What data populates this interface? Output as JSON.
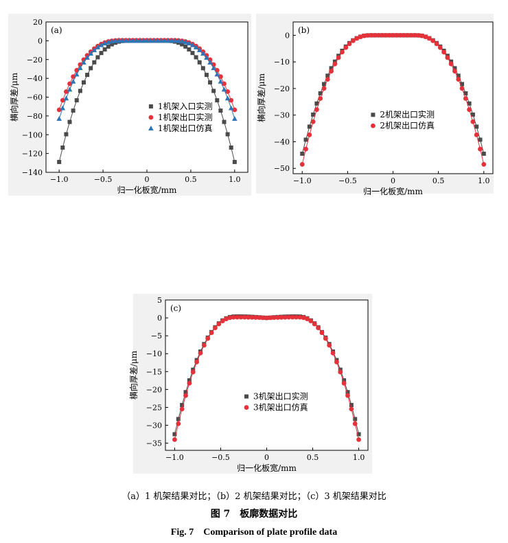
{
  "chart_data": [
    {
      "type": "scatter",
      "panel_label": "(a)",
      "xlabel": "归一化板宽/mm",
      "ylabel": "横向厚差/μm",
      "xlim": [
        -1.15,
        1.15
      ],
      "ylim": [
        -140,
        20
      ],
      "xticks": [
        -1.0,
        -0.5,
        0,
        0.5,
        1.0
      ],
      "xtick_labels": [
        "−1.0",
        "−0.5",
        "0",
        "0.5",
        "1.0"
      ],
      "yticks": [
        20,
        0,
        -20,
        -40,
        -60,
        -80,
        -100,
        -120,
        -140
      ],
      "ytick_labels": [
        "20",
        "0",
        "−20",
        "−40",
        "−60",
        "−80",
        "−100",
        "−120",
        "−140"
      ],
      "grid": false,
      "legend_position": "center-right",
      "n_points": 51,
      "series": [
        {
          "name": "1机架入口实测",
          "marker": "square",
          "color": "#4a4a4a",
          "edge_value": -129,
          "flat_half_width": 0.22,
          "exponent": 2.4,
          "center_value": 0
        },
        {
          "name": "1机架出口实测",
          "marker": "circle",
          "color": "#e5323a",
          "edge_value": -74,
          "flat_half_width": 0.3,
          "exponent": 2.5,
          "center_value": 0.5
        },
        {
          "name": "1机架出口仿真",
          "marker": "triangle",
          "color": "#2f75b5",
          "edge_value": -83,
          "flat_half_width": 0.3,
          "exponent": 2.5,
          "center_value": 0
        }
      ]
    },
    {
      "type": "scatter",
      "panel_label": "(b)",
      "xlabel": "归一化板宽/mm",
      "ylabel": "横向厚差/μm",
      "xlim": [
        -1.1,
        1.1
      ],
      "ylim": [
        -52,
        5
      ],
      "xticks": [
        -1.0,
        -0.5,
        0,
        0.5,
        1.0
      ],
      "xtick_labels": [
        "−1.0",
        "−0.5",
        "0",
        "0.5",
        "1.0"
      ],
      "yticks": [
        0,
        -10,
        -20,
        -30,
        -40,
        -50
      ],
      "ytick_labels": [
        "0",
        "−10",
        "−20",
        "−30",
        "−40",
        "−50"
      ],
      "grid": false,
      "legend_position": "center-right",
      "n_points": 51,
      "series": [
        {
          "name": "2机架出口实测",
          "marker": "square",
          "color": "#4a4a4a",
          "edge_value": -44.5,
          "flat_half_width": 0.25,
          "exponent": 2.3,
          "center_value": 0
        },
        {
          "name": "2机架出口仿真",
          "marker": "circle",
          "color": "#e5323a",
          "edge_value": -48.5,
          "flat_half_width": 0.25,
          "exponent": 2.3,
          "center_value": 0
        }
      ]
    },
    {
      "type": "scatter",
      "panel_label": "(c)",
      "xlabel": "归一化板宽/mm",
      "ylabel": "横向厚差/μm",
      "xlim": [
        -1.1,
        1.1
      ],
      "ylim": [
        -37,
        5
      ],
      "xticks": [
        -1.0,
        -0.5,
        0,
        0.5,
        1.0
      ],
      "xtick_labels": [
        "−1.0",
        "−0.5",
        "0",
        "0.5",
        "1.0"
      ],
      "yticks": [
        5,
        0,
        -5,
        -10,
        -15,
        -20,
        -25,
        -30,
        -35
      ],
      "ytick_labels": [
        "5",
        "0",
        "−5",
        "−10",
        "−15",
        "−20",
        "−25",
        "−30",
        "−35"
      ],
      "grid": false,
      "legend_position": "center-right",
      "n_points": 51,
      "series": [
        {
          "name": "3机架出口实测",
          "marker": "square",
          "color": "#4a4a4a",
          "edge_value": -32.5,
          "flat_half_width": 0.35,
          "exponent": 2.2,
          "center_value": 0,
          "bump": 0.4
        },
        {
          "name": "3机架出口仿真",
          "marker": "circle",
          "color": "#e5323a",
          "edge_value": -34,
          "flat_half_width": 0.35,
          "exponent": 2.2,
          "center_value": 0,
          "bump": 0.2
        }
      ]
    }
  ],
  "captions": {
    "subcaptions": "（a）1 机架结果对比；（b）2 机架结果对比；（c）3 机架结果对比",
    "figure_cn": "图 7　板廓数据对比",
    "figure_en": "Fig. 7　Comparison of plate profile data"
  }
}
